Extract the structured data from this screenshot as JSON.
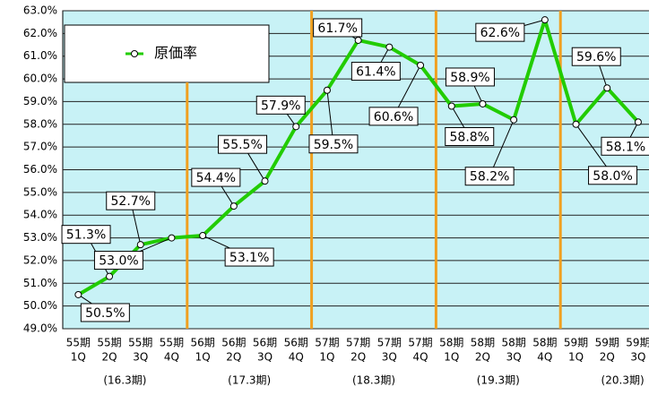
{
  "chart_data": {
    "type": "line",
    "categories": [
      [
        "55期",
        "1Q"
      ],
      [
        "55期",
        "2Q"
      ],
      [
        "55期",
        "3Q"
      ],
      [
        "55期",
        "4Q"
      ],
      [
        "56期",
        "1Q"
      ],
      [
        "56期",
        "2Q"
      ],
      [
        "56期",
        "3Q"
      ],
      [
        "56期",
        "4Q"
      ],
      [
        "57期",
        "1Q"
      ],
      [
        "57期",
        "2Q"
      ],
      [
        "57期",
        "3Q"
      ],
      [
        "57期",
        "4Q"
      ],
      [
        "58期",
        "1Q"
      ],
      [
        "58期",
        "2Q"
      ],
      [
        "58期",
        "3Q"
      ],
      [
        "58期",
        "4Q"
      ],
      [
        "59期",
        "1Q"
      ],
      [
        "59期",
        "2Q"
      ],
      [
        "59期",
        "3Q"
      ]
    ],
    "groups": [
      "(16.3期)",
      "(17.3期)",
      "(18.3期)",
      "(19.3期)",
      "(20.3期)"
    ],
    "series": [
      {
        "name": "原価率",
        "color": "#22cc00",
        "values": [
          50.5,
          51.3,
          52.7,
          53.0,
          53.1,
          54.4,
          55.5,
          57.9,
          59.5,
          61.7,
          61.4,
          60.6,
          58.8,
          58.9,
          58.2,
          62.6,
          58.0,
          59.6,
          58.1
        ],
        "value_labels": [
          "50.5%",
          "51.3%",
          "52.7%",
          "53.0%",
          "53.1%",
          "54.4%",
          "55.5%",
          "57.9%",
          "59.5%",
          "61.7%",
          "61.4%",
          "60.6%",
          "58.8%",
          "58.9%",
          "58.2%",
          "62.6%",
          "58.0%",
          "59.6%",
          "58.1%"
        ]
      }
    ],
    "ylim": [
      49,
      63
    ],
    "yticks": [
      {
        "value": 49,
        "label": "49.0%"
      },
      {
        "value": 50,
        "label": "50.0%"
      },
      {
        "value": 51,
        "label": "51.0%"
      },
      {
        "value": 52,
        "label": "52.0%"
      },
      {
        "value": 53,
        "label": "53.0%"
      },
      {
        "value": 54,
        "label": "54.0%"
      },
      {
        "value": 55,
        "label": "55.0%"
      },
      {
        "value": 56,
        "label": "56.0%"
      },
      {
        "value": 57,
        "label": "57.0%"
      },
      {
        "value": 58,
        "label": "58.0%"
      },
      {
        "value": 59,
        "label": "59.0%"
      },
      {
        "value": 60,
        "label": "60.0%"
      },
      {
        "value": 61,
        "label": "61.0%"
      },
      {
        "value": 62,
        "label": "62.0%"
      },
      {
        "value": 63,
        "label": "63.0%"
      }
    ],
    "grid": true,
    "legend": "top-left"
  }
}
